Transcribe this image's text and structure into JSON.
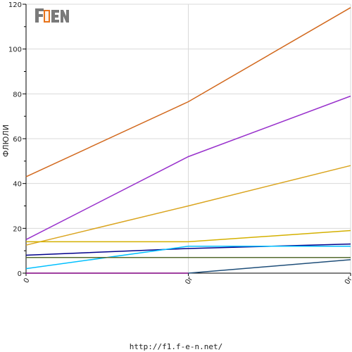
{
  "chart_data": {
    "type": "line",
    "ylabel": "ФЛЮЛИ",
    "ylim": [
      0,
      120
    ],
    "y_ticks": [
      0,
      20,
      40,
      60,
      80,
      100,
      120
    ],
    "categories": [
      "0",
      "0r",
      "0r"
    ],
    "grid": true,
    "series": [
      {
        "color": "#d2691e",
        "values": [
          43,
          76.5,
          118.5
        ]
      },
      {
        "color": "#9932cc",
        "values": [
          15,
          52,
          79
        ]
      },
      {
        "color": "#daa520",
        "values": [
          12.5,
          30,
          48
        ]
      },
      {
        "color": "#d4b000",
        "values": [
          14,
          14,
          19
        ]
      },
      {
        "color": "#00008b",
        "values": [
          8,
          11,
          13
        ]
      },
      {
        "color": "#00bfff",
        "values": [
          2,
          12,
          12
        ]
      },
      {
        "color": "#556b2f",
        "values": [
          7,
          7,
          7
        ]
      },
      {
        "color": "#1f4e79",
        "values": [
          null,
          0,
          6
        ]
      },
      {
        "color": "#800080",
        "values": [
          0,
          0,
          null
        ]
      }
    ]
  },
  "logo": {
    "text": "F1EN"
  },
  "footer": {
    "url": "http://f1.f-e-n.net/"
  }
}
